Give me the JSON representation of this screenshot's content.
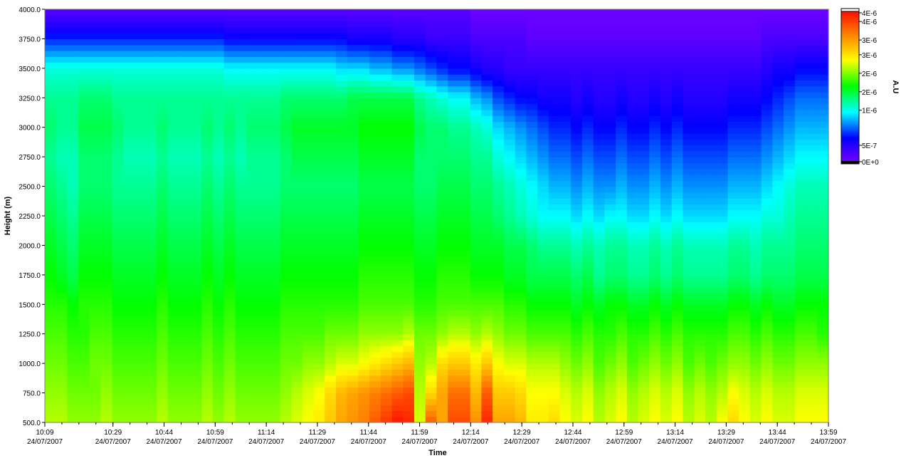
{
  "chart_data": {
    "type": "heatmap",
    "title": "",
    "xlabel": "Time",
    "ylabel": "Height (m)",
    "x_start": "10:09",
    "x_end": "13:59",
    "x_tick_labels": [
      {
        "time": "10:09",
        "date": "24/07/2007"
      },
      {
        "time": "10:29",
        "date": "24/07/2007"
      },
      {
        "time": "10:44",
        "date": "24/07/2007"
      },
      {
        "time": "10:59",
        "date": "24/07/2007"
      },
      {
        "time": "11:14",
        "date": "24/07/2007"
      },
      {
        "time": "11:29",
        "date": "24/07/2007"
      },
      {
        "time": "11:44",
        "date": "24/07/2007"
      },
      {
        "time": "11:59",
        "date": "24/07/2007"
      },
      {
        "time": "12:14",
        "date": "24/07/2007"
      },
      {
        "time": "12:29",
        "date": "24/07/2007"
      },
      {
        "time": "12:44",
        "date": "24/07/2007"
      },
      {
        "time": "12:59",
        "date": "24/07/2007"
      },
      {
        "time": "13:14",
        "date": "24/07/2007"
      },
      {
        "time": "13:29",
        "date": "24/07/2007"
      },
      {
        "time": "13:44",
        "date": "24/07/2007"
      },
      {
        "time": "13:59",
        "date": "24/07/2007"
      }
    ],
    "ylim": [
      500,
      4000
    ],
    "y_tick_labels": [
      "500.0",
      "750.0",
      "1000.0",
      "1250.0",
      "1500.0",
      "1750.0",
      "2000.0",
      "2250.0",
      "2500.0",
      "2750.0",
      "3000.0",
      "3250.0",
      "3500.0",
      "3750.0",
      "4000.0"
    ],
    "colorbar": {
      "label": "A.U",
      "vmin": 0,
      "vmax": 4.2e-06,
      "tick_labels": [
        {
          "label": "4E-6",
          "value": 4.2e-06
        },
        {
          "label": "4E-6",
          "value": 3.85e-06
        },
        {
          "label": "3E-6",
          "value": 3.35e-06
        },
        {
          "label": "3E-6",
          "value": 2.95e-06
        },
        {
          "label": "2E-6",
          "value": 2.45e-06
        },
        {
          "label": "2E-6",
          "value": 1.95e-06
        },
        {
          "label": "1E-6",
          "value": 1.45e-06
        },
        {
          "label": "5E-7",
          "value": 5e-07
        },
        {
          "label": "0E+0",
          "value": 0
        }
      ],
      "colors": [
        "#8000ff",
        "#0000ff",
        "#00ffff",
        "#00ff00",
        "#ffff00",
        "#ff8000",
        "#ff0000"
      ]
    },
    "grid": false,
    "columns": 70,
    "heights": [
      500,
      750,
      1000,
      1250,
      1500,
      1750,
      2000,
      2250,
      2500,
      2750,
      3000,
      3250,
      3500,
      3750,
      4000
    ],
    "values": {
      "note_units": "x 1e-7 A.U; rows ordered by heights (500 m to 4000 m), each row has 70 columns spanning 10:09-13:59",
      "rows": [
        [
          26,
          26,
          25,
          25,
          25,
          26,
          25,
          25,
          25,
          25,
          26,
          25,
          25,
          25,
          26,
          25,
          26,
          25,
          25,
          25,
          25,
          26,
          27,
          28,
          29,
          31,
          33,
          34,
          35,
          37,
          39,
          41,
          40,
          27,
          37,
          33,
          38,
          38,
          34,
          40,
          33,
          33,
          32,
          29,
          29,
          30,
          28,
          27,
          28,
          26,
          27,
          28,
          26,
          27,
          28,
          27,
          28,
          26,
          27,
          26,
          28,
          30,
          28,
          27,
          28,
          27,
          27,
          28,
          28,
          28
        ],
        [
          25,
          25,
          24,
          24,
          24,
          25,
          24,
          24,
          24,
          24,
          25,
          24,
          24,
          24,
          25,
          24,
          25,
          24,
          24,
          24,
          24,
          25,
          26,
          27,
          28,
          30,
          32,
          33,
          34,
          35,
          36,
          37,
          38,
          26,
          30,
          33,
          36,
          36,
          32,
          37,
          31,
          31,
          30,
          28,
          28,
          28,
          27,
          26,
          27,
          25,
          26,
          27,
          25,
          26,
          27,
          26,
          27,
          25,
          26,
          25,
          26,
          28,
          27,
          26,
          27,
          26,
          26,
          27,
          27,
          27
        ],
        [
          24,
          24,
          23,
          23,
          24,
          24,
          23,
          23,
          23,
          23,
          24,
          23,
          23,
          23,
          24,
          23,
          24,
          23,
          23,
          23,
          23,
          24,
          24,
          25,
          25,
          26,
          27,
          27,
          28,
          29,
          30,
          31,
          32,
          25,
          26,
          30,
          31,
          31,
          29,
          31,
          28,
          27,
          27,
          26,
          26,
          26,
          25,
          24,
          25,
          23,
          24,
          25,
          23,
          24,
          25,
          24,
          25,
          23,
          24,
          23,
          24,
          25,
          25,
          24,
          25,
          24,
          24,
          25,
          25,
          25
        ],
        [
          23,
          23,
          22,
          22,
          23,
          23,
          22,
          22,
          22,
          22,
          23,
          22,
          22,
          22,
          23,
          22,
          23,
          22,
          22,
          22,
          22,
          23,
          23,
          23,
          23,
          24,
          24,
          24,
          25,
          25,
          25,
          25,
          26,
          24,
          24,
          25,
          26,
          26,
          25,
          26,
          25,
          24,
          24,
          23,
          23,
          23,
          23,
          22,
          23,
          22,
          22,
          23,
          22,
          22,
          23,
          22,
          23,
          22,
          22,
          22,
          22,
          23,
          23,
          22,
          23,
          22,
          22,
          23,
          23,
          22
        ],
        [
          22,
          22,
          21,
          22,
          22,
          22,
          21,
          21,
          21,
          21,
          22,
          21,
          21,
          21,
          22,
          21,
          22,
          21,
          21,
          21,
          21,
          22,
          22,
          22,
          22,
          22,
          22,
          22,
          23,
          23,
          23,
          23,
          23,
          22,
          22,
          23,
          23,
          23,
          23,
          23,
          23,
          22,
          22,
          21,
          21,
          21,
          21,
          20,
          21,
          20,
          21,
          21,
          20,
          20,
          21,
          20,
          21,
          20,
          20,
          20,
          20,
          21,
          21,
          20,
          21,
          20,
          20,
          21,
          21,
          21
        ],
        [
          21,
          20,
          19,
          21,
          21,
          21,
          20,
          20,
          20,
          20,
          21,
          20,
          20,
          20,
          21,
          20,
          21,
          20,
          20,
          20,
          20,
          21,
          21,
          21,
          21,
          21,
          21,
          21,
          22,
          22,
          22,
          22,
          22,
          21,
          21,
          22,
          22,
          22,
          21,
          21,
          21,
          20,
          20,
          19,
          19,
          19,
          19,
          18,
          19,
          17,
          18,
          18,
          17,
          17,
          18,
          17,
          18,
          17,
          17,
          17,
          17,
          18,
          18,
          17,
          18,
          18,
          18,
          19,
          19,
          19
        ],
        [
          20,
          19,
          18,
          20,
          20,
          20,
          19,
          19,
          19,
          19,
          20,
          19,
          19,
          19,
          20,
          19,
          20,
          19,
          19,
          19,
          19,
          20,
          20,
          20,
          20,
          20,
          20,
          20,
          21,
          21,
          21,
          21,
          21,
          20,
          20,
          21,
          21,
          21,
          20,
          20,
          20,
          19,
          19,
          18,
          17,
          17,
          17,
          16,
          17,
          16,
          17,
          17,
          16,
          16,
          17,
          16,
          17,
          16,
          16,
          16,
          16,
          17,
          17,
          16,
          17,
          17,
          17,
          18,
          18,
          18
        ],
        [
          19,
          18,
          17,
          19,
          19,
          19,
          18,
          18,
          18,
          18,
          19,
          18,
          18,
          18,
          19,
          18,
          19,
          18,
          18,
          18,
          18,
          19,
          19,
          19,
          19,
          19,
          19,
          19,
          20,
          20,
          20,
          20,
          20,
          19,
          19,
          20,
          20,
          20,
          19,
          19,
          18,
          17,
          16,
          15,
          14,
          14,
          14,
          13,
          14,
          13,
          14,
          14,
          13,
          13,
          14,
          13,
          14,
          13,
          13,
          13,
          13,
          14,
          14,
          14,
          15,
          15,
          16,
          17,
          17,
          17
        ],
        [
          18,
          17,
          16,
          18,
          18,
          18,
          17,
          17,
          17,
          17,
          18,
          17,
          17,
          17,
          18,
          17,
          18,
          17,
          17,
          17,
          17,
          18,
          18,
          18,
          18,
          18,
          18,
          18,
          19,
          19,
          19,
          19,
          19,
          18,
          18,
          19,
          19,
          19,
          18,
          18,
          17,
          16,
          15,
          14,
          13,
          12,
          12,
          11,
          12,
          11,
          11,
          12,
          11,
          11,
          12,
          11,
          12,
          11,
          11,
          11,
          11,
          12,
          12,
          12,
          13,
          14,
          15,
          16,
          16,
          16
        ],
        [
          17,
          16,
          16,
          18,
          18,
          18,
          17,
          16,
          16,
          16,
          17,
          16,
          16,
          16,
          17,
          16,
          17,
          16,
          17,
          17,
          17,
          18,
          19,
          19,
          19,
          19,
          19,
          19,
          20,
          20,
          20,
          20,
          20,
          18,
          18,
          18,
          18,
          18,
          17,
          17,
          15,
          14,
          13,
          12,
          11,
          10,
          10,
          9,
          10,
          9,
          9,
          10,
          9,
          9,
          10,
          9,
          10,
          9,
          9,
          9,
          9,
          10,
          10,
          10,
          11,
          12,
          13,
          14,
          14,
          14
        ],
        [
          18,
          17,
          17,
          19,
          19,
          19,
          18,
          17,
          17,
          17,
          18,
          17,
          17,
          17,
          18,
          17,
          18,
          17,
          18,
          18,
          18,
          19,
          20,
          20,
          20,
          20,
          20,
          20,
          21,
          21,
          21,
          21,
          21,
          19,
          18,
          18,
          17,
          17,
          16,
          15,
          13,
          12,
          11,
          10,
          9,
          8,
          8,
          7,
          8,
          7,
          7,
          8,
          7,
          7,
          8,
          7,
          8,
          7,
          7,
          7,
          7,
          8,
          8,
          8,
          9,
          10,
          11,
          12,
          12,
          12
        ],
        [
          17,
          17,
          17,
          18,
          18,
          18,
          17,
          17,
          17,
          17,
          17,
          17,
          17,
          17,
          17,
          17,
          17,
          17,
          17,
          17,
          17,
          18,
          18,
          18,
          18,
          18,
          18,
          19,
          19,
          19,
          19,
          19,
          19,
          17,
          16,
          15,
          14,
          14,
          12,
          11,
          9,
          8,
          7,
          7,
          6,
          6,
          6,
          5,
          6,
          5,
          5,
          6,
          5,
          5,
          6,
          5,
          6,
          5,
          5,
          5,
          5,
          6,
          6,
          6,
          7,
          8,
          9,
          10,
          10,
          10
        ],
        [
          15,
          15,
          15,
          15,
          15,
          15,
          15,
          15,
          15,
          15,
          15,
          15,
          15,
          15,
          15,
          15,
          14,
          14,
          14,
          14,
          14,
          14,
          14,
          14,
          14,
          14,
          13,
          13,
          13,
          12,
          12,
          11,
          11,
          10,
          9,
          8,
          7,
          7,
          6,
          5,
          5,
          4,
          4,
          4,
          4,
          4,
          4,
          4,
          4,
          4,
          4,
          4,
          4,
          4,
          4,
          4,
          4,
          4,
          4,
          4,
          4,
          4,
          4,
          4,
          5,
          6,
          6,
          7,
          7,
          7
        ],
        [
          8,
          8,
          8,
          8,
          8,
          8,
          8,
          8,
          8,
          8,
          8,
          8,
          8,
          8,
          8,
          8,
          7,
          7,
          7,
          7,
          7,
          7,
          7,
          7,
          7,
          7,
          7,
          6,
          6,
          6,
          6,
          5,
          5,
          5,
          4,
          4,
          4,
          4,
          3,
          3,
          3,
          3,
          3,
          2,
          2,
          2,
          2,
          2,
          2,
          2,
          2,
          2,
          2,
          2,
          2,
          2,
          2,
          2,
          2,
          2,
          2,
          2,
          2,
          2,
          3,
          3,
          3,
          3,
          3,
          3
        ],
        [
          2,
          2,
          2,
          2,
          2,
          2,
          2,
          2,
          2,
          2,
          2,
          2,
          2,
          2,
          2,
          2,
          2,
          2,
          2,
          2,
          2,
          2,
          2,
          2,
          2,
          2,
          2,
          2,
          2,
          2,
          2,
          2,
          2,
          2,
          2,
          2,
          2,
          2,
          1,
          1,
          1,
          1,
          1,
          1,
          1,
          1,
          1,
          1,
          1,
          1,
          1,
          1,
          1,
          1,
          1,
          1,
          1,
          1,
          1,
          1,
          1,
          1,
          1,
          1,
          1,
          1,
          1,
          1,
          1,
          1
        ]
      ]
    }
  }
}
